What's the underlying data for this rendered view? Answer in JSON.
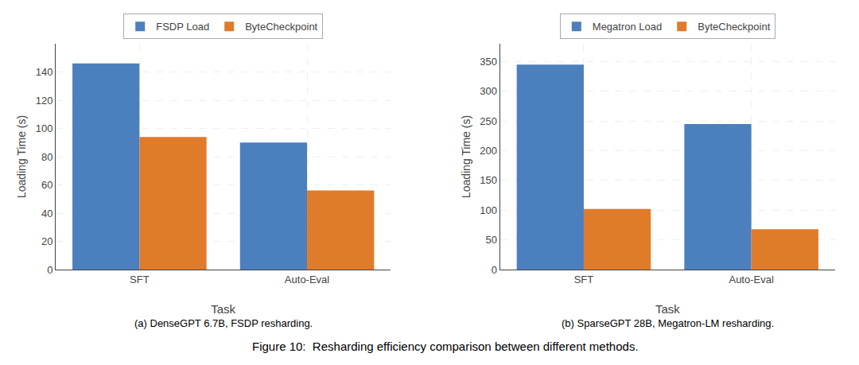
{
  "caption": "Figure 10:  Resharding efficiency comparison between different methods.",
  "chart_data": [
    {
      "type": "bar",
      "categories": [
        "SFT",
        "Auto-Eval"
      ],
      "series": [
        {
          "name": "FSDP Load",
          "color": "#4c7fbe",
          "values": [
            146,
            90
          ]
        },
        {
          "name": "ByteCheckpoint",
          "color": "#e07b2a",
          "values": [
            94,
            56
          ]
        }
      ],
      "xlabel": "Task",
      "ylabel": "Loading Time (s)",
      "ylim": [
        0,
        160
      ],
      "yticks": [
        0,
        20,
        40,
        60,
        80,
        100,
        120,
        140
      ],
      "grid": true,
      "legend": "upper center",
      "caption": "(a) DenseGPT 6.7B, FSDP resharding."
    },
    {
      "type": "bar",
      "categories": [
        "SFT",
        "Auto-Eval"
      ],
      "series": [
        {
          "name": "Megatron Load",
          "color": "#4c7fbe",
          "values": [
            345,
            245
          ]
        },
        {
          "name": "ByteCheckpoint",
          "color": "#e07b2a",
          "values": [
            102,
            68
          ]
        }
      ],
      "xlabel": "Task",
      "ylabel": "Loading Time (s)",
      "ylim": [
        0,
        380
      ],
      "yticks": [
        0,
        50,
        100,
        150,
        200,
        250,
        300,
        350
      ],
      "grid": true,
      "legend": "upper center",
      "caption": "(b) SparseGPT 28B, Megatron-LM resharding."
    }
  ]
}
